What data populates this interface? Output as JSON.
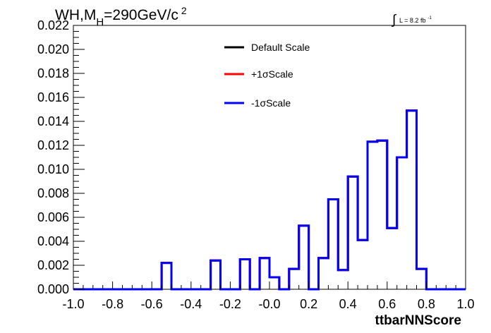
{
  "title_text": {
    "main": "WH,M",
    "sub": "H",
    "rest": "=290GeV/c",
    "sup": "2"
  },
  "lumi": {
    "sign": "∫",
    "text": "L = 8.2 fb",
    "sup": "-1"
  },
  "chart_data": {
    "type": "line",
    "step": true,
    "xlabel": "ttbarNNScore",
    "ylabel": "",
    "xlim": [
      -1.0,
      1.0
    ],
    "ylim": [
      0.0,
      0.022
    ],
    "xticks": [
      "-1.0",
      "-0.8",
      "-0.6",
      "-0.4",
      "-0.2",
      "-0.0",
      "0.2",
      "0.4",
      "0.6",
      "0.8",
      "1.0"
    ],
    "yticks": [
      "0.000",
      "0.002",
      "0.004",
      "0.006",
      "0.008",
      "0.010",
      "0.012",
      "0.014",
      "0.016",
      "0.018",
      "0.020",
      "0.022"
    ],
    "bin_edges": [
      -1.0,
      -0.95,
      -0.9,
      -0.85,
      -0.8,
      -0.75,
      -0.7,
      -0.65,
      -0.6,
      -0.55,
      -0.5,
      -0.45,
      -0.4,
      -0.35,
      -0.3,
      -0.25,
      -0.2,
      -0.15,
      -0.1,
      -0.05,
      0.0,
      0.05,
      0.1,
      0.15,
      0.2,
      0.25,
      0.3,
      0.35,
      0.4,
      0.45,
      0.5,
      0.55,
      0.6,
      0.65,
      0.7,
      0.75,
      0.8,
      0.85,
      0.9,
      0.95,
      1.0
    ],
    "legend": {
      "position": "top-center"
    },
    "series": [
      {
        "name": "Default Scale",
        "color": "#000000",
        "values": [
          0,
          0,
          0,
          0,
          0,
          0,
          0,
          0,
          0,
          0.0022,
          0,
          0,
          0,
          0,
          0.0024,
          0,
          0,
          0.0025,
          0,
          0.0026,
          0.001,
          0,
          0.0017,
          0.0053,
          0,
          0.0026,
          0.0075,
          0.0016,
          0.0094,
          0.0041,
          0.0123,
          0.0124,
          0.0051,
          0.011,
          0.0149,
          0.0017,
          0,
          0,
          0,
          0
        ]
      },
      {
        "name": "+1σScale",
        "color": "#ff0000",
        "values": [
          0,
          0,
          0,
          0,
          0,
          0,
          0,
          0,
          0,
          0.0022,
          0,
          0,
          0,
          0,
          0.0024,
          0,
          0,
          0.0025,
          0,
          0.0026,
          0.001,
          0,
          0.0017,
          0.0053,
          0,
          0.0026,
          0.0075,
          0.0016,
          0.0094,
          0.0041,
          0.0123,
          0.0124,
          0.0051,
          0.011,
          0.0149,
          0.0017,
          0,
          0,
          0,
          0
        ]
      },
      {
        "name": "-1σScale",
        "color": "#0000ff",
        "values": [
          0,
          0,
          0,
          0,
          0,
          0,
          0,
          0,
          0,
          0.0022,
          0,
          0,
          0,
          0,
          0.0024,
          0,
          0,
          0.0025,
          0,
          0.0026,
          0.001,
          0,
          0.0017,
          0.0053,
          0,
          0.0026,
          0.0075,
          0.0016,
          0.0094,
          0.0041,
          0.0123,
          0.0124,
          0.0051,
          0.011,
          0.0149,
          0.0017,
          0,
          0,
          0,
          0
        ]
      }
    ]
  }
}
